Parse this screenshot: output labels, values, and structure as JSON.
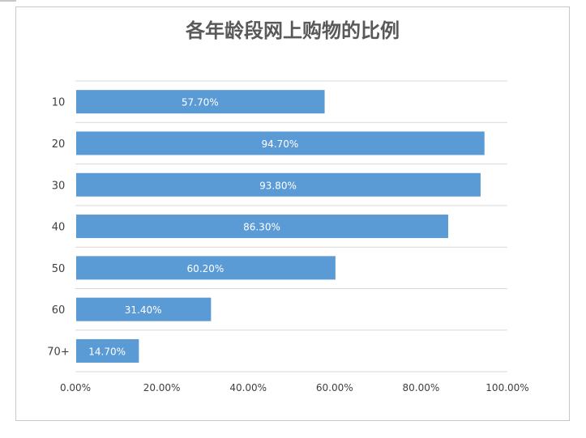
{
  "chart_data": {
    "type": "bar",
    "orientation": "horizontal",
    "title": "各年龄段网上购物的比例",
    "categories": [
      "10",
      "20",
      "30",
      "40",
      "50",
      "60",
      "70+"
    ],
    "values": [
      57.7,
      94.7,
      93.8,
      86.3,
      60.2,
      31.4,
      14.7
    ],
    "data_labels": [
      "57.70%",
      "94.70%",
      "93.80%",
      "86.30%",
      "60.20%",
      "31.40%",
      "14.70%"
    ],
    "x_ticks": [
      "0.00%",
      "20.00%",
      "40.00%",
      "60.00%",
      "80.00%",
      "100.00%"
    ],
    "xlim": [
      0,
      100
    ],
    "grid": true,
    "legend": "none",
    "bar_color": "#5b9bd5"
  }
}
